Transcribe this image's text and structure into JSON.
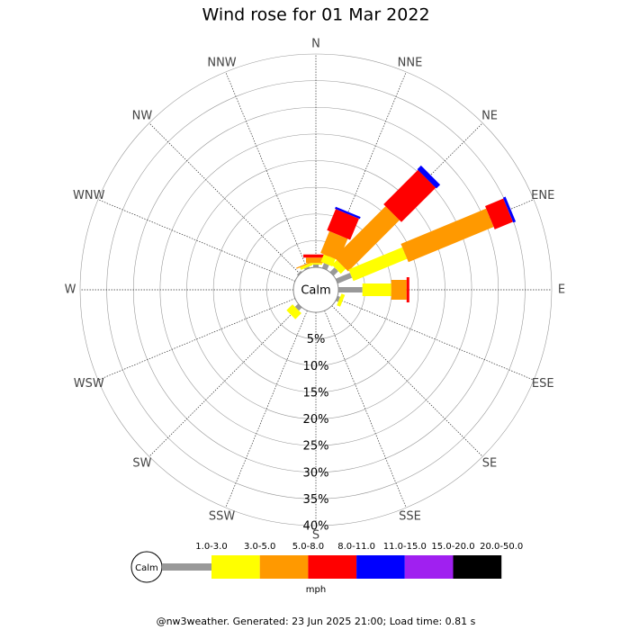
{
  "chart_data": {
    "type": "windrose",
    "title": "Wind rose for 01 Mar 2022",
    "categories": [
      "N",
      "NNE",
      "NE",
      "ENE",
      "E",
      "ESE",
      "SE",
      "SSE",
      "S",
      "SSW",
      "SW",
      "WSW",
      "W",
      "WNW",
      "NW",
      "NNW"
    ],
    "center_label": "Calm",
    "rlim": [
      0,
      40
    ],
    "rticks": [
      {
        "value": 5,
        "label": "5%"
      },
      {
        "value": 10,
        "label": "10%"
      },
      {
        "value": 15,
        "label": "15%"
      },
      {
        "value": 20,
        "label": "20%"
      },
      {
        "value": 25,
        "label": "25%"
      },
      {
        "value": 30,
        "label": "30%"
      },
      {
        "value": 35,
        "label": "35%"
      },
      {
        "value": 40,
        "label": "40%"
      }
    ],
    "series": [
      {
        "name": "1.0-3.0",
        "color": "#999999",
        "values": [
          0.5,
          1.0,
          1.2,
          2.9,
          4.5,
          0.5,
          0,
          0,
          0,
          0,
          0.8,
          0,
          0,
          0,
          0.3,
          0.3
        ]
      },
      {
        "name": "3.0-5.0",
        "color": "#ffff00",
        "values": [
          0.3,
          1.5,
          1.3,
          10.9,
          5.4,
          0.7,
          0,
          0,
          0,
          0,
          1.6,
          0,
          0,
          0,
          0,
          0.5
        ]
      },
      {
        "name": "5.0-8.0",
        "color": "#ff9900",
        "values": [
          1.0,
          4.4,
          13.6,
          17.3,
          2.9,
          0,
          0,
          0,
          0,
          0,
          0,
          0,
          0,
          0,
          0,
          0.2
        ]
      },
      {
        "name": "8.0-11.0",
        "color": "#ff0000",
        "values": [
          0.6,
          4.3,
          9.1,
          3.7,
          0.5,
          0,
          0,
          0,
          0,
          0,
          0,
          0,
          0,
          0,
          0,
          0
        ]
      },
      {
        "name": "11.0-15.0",
        "color": "#0000ff",
        "values": [
          0,
          0.4,
          1.0,
          0.5,
          0,
          0,
          0,
          0,
          0,
          0,
          0,
          0,
          0,
          0,
          0,
          0
        ]
      },
      {
        "name": "15.0-20.0",
        "color": "#a020f0",
        "values": [
          0,
          0,
          0,
          0,
          0,
          0,
          0,
          0,
          0,
          0,
          0,
          0,
          0,
          0,
          0,
          0
        ]
      },
      {
        "name": "20.0-50.0",
        "color": "#000000",
        "values": [
          0,
          0,
          0,
          0,
          0,
          0,
          0,
          0,
          0,
          0,
          0,
          0,
          0,
          0,
          0,
          0
        ]
      }
    ],
    "legend_unit": "mph",
    "footer": "@nw3weather. Generated: 23 Jun 2025 21:00; Load time: 0.81 s"
  }
}
